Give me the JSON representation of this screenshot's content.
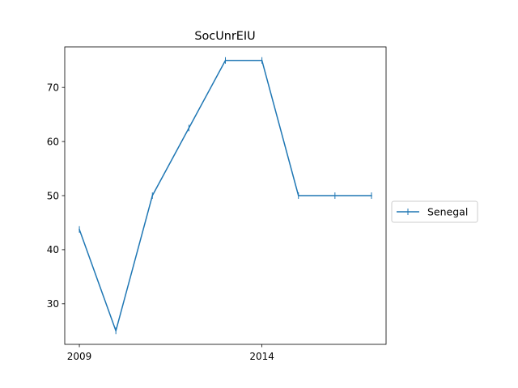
{
  "chart_data": {
    "type": "line",
    "title": "SocUnrEIU",
    "xlabel": "",
    "ylabel": "",
    "x": [
      2009,
      2010,
      2011,
      2012,
      2013,
      2014,
      2015,
      2016,
      2017
    ],
    "x_ticks": [
      2009,
      2014
    ],
    "x_tick_labels": [
      "2009",
      "2014"
    ],
    "xlim": [
      2008.6,
      2017.4
    ],
    "y_ticks": [
      30,
      40,
      50,
      60,
      70
    ],
    "y_tick_labels": [
      "30",
      "40",
      "50",
      "60",
      "70"
    ],
    "ylim": [
      22.5,
      77.5
    ],
    "grid": false,
    "legend_position": "center-right, outside plot",
    "series": [
      {
        "name": "Senegal",
        "color": "#1f77b4",
        "marker": "vertical-tick",
        "values": [
          43.75,
          25,
          50,
          62.5,
          75,
          75,
          50,
          50,
          50
        ]
      }
    ]
  }
}
